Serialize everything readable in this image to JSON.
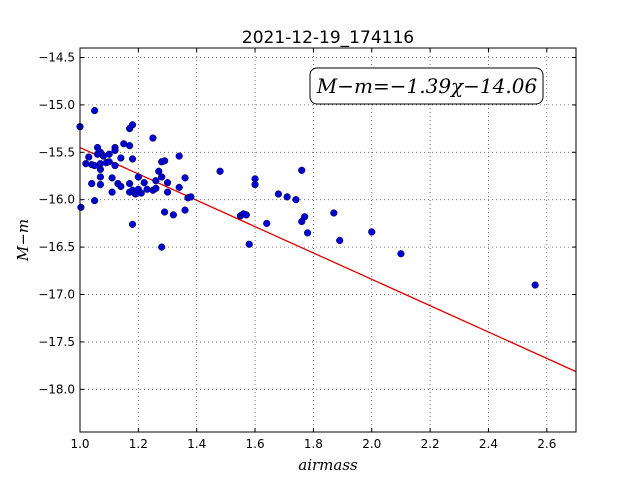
{
  "chart_data": {
    "type": "scatter",
    "title": "2021-12-19_174116",
    "xlabel": "airmass",
    "ylabel": "M−m",
    "annotation": "M−m=−1.39χ−14.06",
    "xlim": [
      1.0,
      2.7
    ],
    "ylim": [
      -18.45,
      -14.4
    ],
    "x_ticks": [
      1.0,
      1.2,
      1.4,
      1.6,
      1.8,
      2.0,
      2.2,
      2.4,
      2.6
    ],
    "x_tick_labels": [
      "1.0",
      "1.2",
      "1.4",
      "1.6",
      "1.8",
      "2.0",
      "2.2",
      "2.4",
      "2.6"
    ],
    "y_ticks": [
      -14.5,
      -15.0,
      -15.5,
      -16.0,
      -16.5,
      -17.0,
      -17.5,
      -18.0
    ],
    "y_tick_labels": [
      "−14.5",
      "−15.0",
      "−15.5",
      "−16.0",
      "−16.5",
      "−17.0",
      "−17.5",
      "−18.0"
    ],
    "grid": true,
    "point_color": "#0000cc",
    "fit_color": "#dd0000",
    "fit_line": {
      "slope": -1.39,
      "intercept": -14.06
    },
    "points": [
      [
        1.0,
        -15.23
      ],
      [
        1.003,
        -16.08
      ],
      [
        1.02,
        -15.62
      ],
      [
        1.03,
        -15.55
      ],
      [
        1.04,
        -15.83
      ],
      [
        1.04,
        -15.63
      ],
      [
        1.05,
        -15.06
      ],
      [
        1.05,
        -16.01
      ],
      [
        1.05,
        -15.64
      ],
      [
        1.06,
        -15.45
      ],
      [
        1.06,
        -15.52
      ],
      [
        1.07,
        -15.5
      ],
      [
        1.07,
        -15.62
      ],
      [
        1.07,
        -15.68
      ],
      [
        1.07,
        -15.76
      ],
      [
        1.07,
        -15.84
      ],
      [
        1.08,
        -15.54
      ],
      [
        1.09,
        -15.61
      ],
      [
        1.1,
        -15.52
      ],
      [
        1.1,
        -15.6
      ],
      [
        1.11,
        -15.77
      ],
      [
        1.11,
        -15.92
      ],
      [
        1.12,
        -15.45
      ],
      [
        1.12,
        -15.48
      ],
      [
        1.12,
        -15.64
      ],
      [
        1.13,
        -15.83
      ],
      [
        1.14,
        -15.86
      ],
      [
        1.14,
        -15.56
      ],
      [
        1.15,
        -15.41
      ],
      [
        1.17,
        -15.25
      ],
      [
        1.17,
        -15.43
      ],
      [
        1.17,
        -15.83
      ],
      [
        1.17,
        -15.92
      ],
      [
        1.18,
        -15.21
      ],
      [
        1.18,
        -15.57
      ],
      [
        1.18,
        -15.9
      ],
      [
        1.18,
        -16.26
      ],
      [
        1.19,
        -15.94
      ],
      [
        1.2,
        -15.89
      ],
      [
        1.2,
        -15.76
      ],
      [
        1.21,
        -15.93
      ],
      [
        1.22,
        -15.82
      ],
      [
        1.23,
        -15.89
      ],
      [
        1.25,
        -15.35
      ],
      [
        1.25,
        -15.9
      ],
      [
        1.26,
        -15.8
      ],
      [
        1.26,
        -15.88
      ],
      [
        1.27,
        -15.7
      ],
      [
        1.28,
        -15.6
      ],
      [
        1.28,
        -15.76
      ],
      [
        1.28,
        -16.5
      ],
      [
        1.29,
        -15.59
      ],
      [
        1.29,
        -16.13
      ],
      [
        1.3,
        -15.92
      ],
      [
        1.3,
        -15.82
      ],
      [
        1.32,
        -16.16
      ],
      [
        1.34,
        -15.54
      ],
      [
        1.34,
        -15.87
      ],
      [
        1.36,
        -15.77
      ],
      [
        1.36,
        -16.11
      ],
      [
        1.37,
        -15.98
      ],
      [
        1.38,
        -15.97
      ],
      [
        1.48,
        -15.7
      ],
      [
        1.55,
        -16.17
      ],
      [
        1.56,
        -16.15
      ],
      [
        1.57,
        -16.16
      ],
      [
        1.58,
        -16.47
      ],
      [
        1.6,
        -15.84
      ],
      [
        1.6,
        -15.78
      ],
      [
        1.64,
        -16.25
      ],
      [
        1.68,
        -15.94
      ],
      [
        1.71,
        -15.97
      ],
      [
        1.74,
        -16.0
      ],
      [
        1.76,
        -15.69
      ],
      [
        1.76,
        -16.23
      ],
      [
        1.77,
        -16.18
      ],
      [
        1.78,
        -16.35
      ],
      [
        1.87,
        -16.14
      ],
      [
        1.89,
        -16.43
      ],
      [
        2.0,
        -16.34
      ],
      [
        2.1,
        -16.57
      ],
      [
        2.56,
        -16.9
      ]
    ]
  }
}
